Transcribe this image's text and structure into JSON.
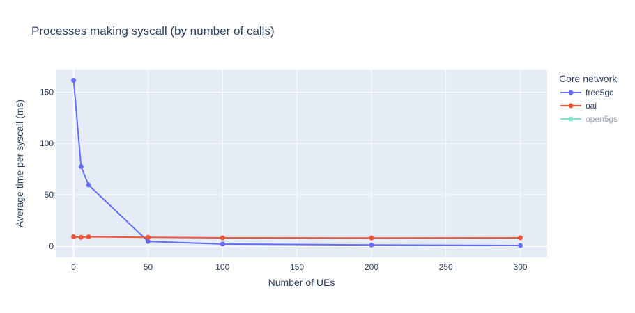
{
  "chart_data": {
    "type": "line",
    "title": "Processes making syscall (by number of calls)",
    "xlabel": "Number of UEs",
    "ylabel": "Average time per syscall (ms)",
    "xlim": [
      -12,
      318
    ],
    "ylim": [
      -11,
      172
    ],
    "x_ticks": [
      0,
      50,
      100,
      150,
      200,
      250,
      300
    ],
    "y_ticks": [
      0,
      50,
      100,
      150
    ],
    "grid": true,
    "legend_position": "right",
    "legend_title": "Core network",
    "series": [
      {
        "name": "free5gc",
        "color": "#636efa",
        "visible": true,
        "x": [
          0,
          5,
          10,
          50,
          100,
          200,
          300
        ],
        "y": [
          161.5,
          77.5,
          59.5,
          4.5,
          2,
          1,
          0.5
        ]
      },
      {
        "name": "oai",
        "color": "#ef553b",
        "visible": true,
        "x": [
          0,
          5,
          10,
          50,
          100,
          200,
          300
        ],
        "y": [
          9,
          8.5,
          9,
          8.5,
          8,
          7.8,
          8
        ]
      },
      {
        "name": "open5gs",
        "color": "#00cc96",
        "visible": false,
        "x": [],
        "y": []
      }
    ]
  }
}
